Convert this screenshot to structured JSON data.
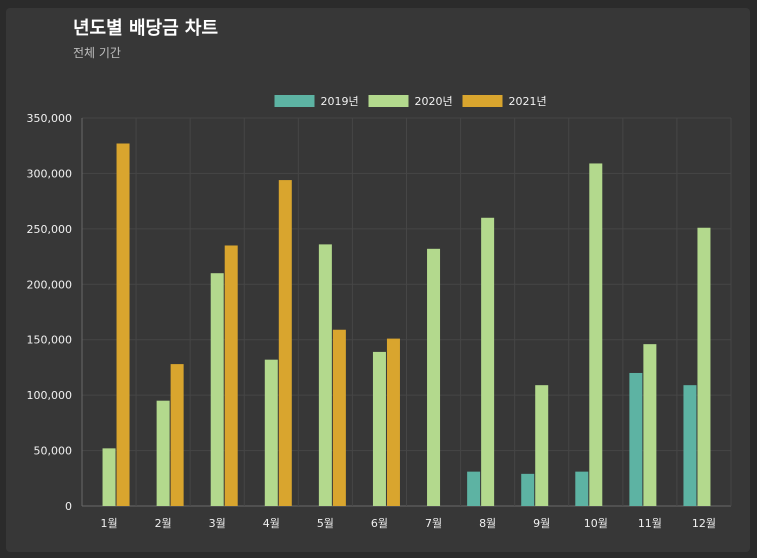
{
  "header": {
    "title": "년도별 배당금 차트",
    "subtitle": "전체 기간"
  },
  "chart_data": {
    "type": "bar",
    "categories": [
      "1월",
      "2월",
      "3월",
      "4월",
      "5월",
      "6월",
      "7월",
      "8월",
      "9월",
      "10월",
      "11월",
      "12월"
    ],
    "series": [
      {
        "name": "2019년",
        "color": "#5db3a3",
        "values": [
          0,
          0,
          0,
          0,
          0,
          0,
          0,
          31000,
          29000,
          31000,
          120000,
          109000
        ]
      },
      {
        "name": "2020년",
        "color": "#b3d98d",
        "values": [
          52000,
          95000,
          210000,
          132000,
          236000,
          139000,
          232000,
          260000,
          109000,
          309000,
          146000,
          251000
        ]
      },
      {
        "name": "2021년",
        "color": "#d9a52e",
        "values": [
          327000,
          128000,
          235000,
          294000,
          159000,
          151000,
          0,
          0,
          0,
          0,
          0,
          0
        ]
      }
    ],
    "y_ticks": [
      "0",
      "50,000",
      "100,000",
      "150,000",
      "200,000",
      "250,000",
      "300,000",
      "350,000"
    ],
    "ylim": [
      0,
      350000
    ],
    "grid": true,
    "legend_position": "top-center"
  }
}
